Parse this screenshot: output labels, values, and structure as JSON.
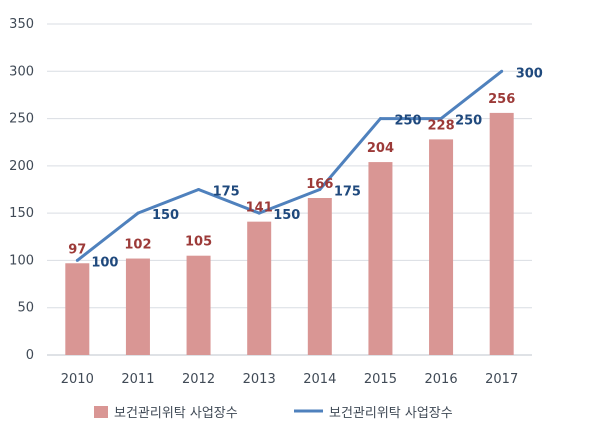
{
  "chart_data": {
    "type": "bar",
    "categories": [
      "2010",
      "2011",
      "2012",
      "2013",
      "2014",
      "2015",
      "2016",
      "2017"
    ],
    "series": [
      {
        "name": "보건관리위탁 사업장수",
        "type": "bar",
        "values": [
          97,
          102,
          105,
          141,
          166,
          204,
          228,
          256
        ],
        "color": "#d99694"
      },
      {
        "name": "보건관리위탁 사업장수",
        "type": "line",
        "values": [
          100,
          150,
          175,
          150,
          175,
          250,
          250,
          300
        ],
        "color": "#4f81bd"
      }
    ],
    "ylim": [
      0,
      350
    ],
    "yticks": [
      "0",
      "50",
      "100",
      "150",
      "200",
      "250",
      "300",
      "350"
    ],
    "grid": true,
    "legend_position": "bottom",
    "colors": {
      "bar_label": "#9c3a38",
      "line_label": "#1f497d",
      "grid": "#d9dde3",
      "axis": "#bfc5cc"
    }
  }
}
